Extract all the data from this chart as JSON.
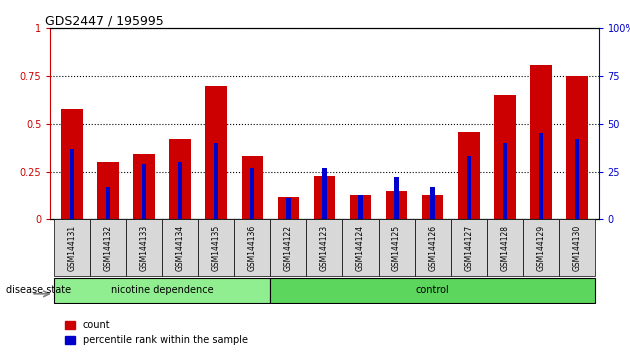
{
  "title": "GDS2447 / 195995",
  "categories": [
    "GSM144131",
    "GSM144132",
    "GSM144133",
    "GSM144134",
    "GSM144135",
    "GSM144136",
    "GSM144122",
    "GSM144123",
    "GSM144124",
    "GSM144125",
    "GSM144126",
    "GSM144127",
    "GSM144128",
    "GSM144129",
    "GSM144130"
  ],
  "count_values": [
    0.58,
    0.3,
    0.34,
    0.42,
    0.7,
    0.33,
    0.12,
    0.23,
    0.13,
    0.15,
    0.13,
    0.46,
    0.65,
    0.81,
    0.75
  ],
  "percentile_values": [
    0.37,
    0.17,
    0.29,
    0.3,
    0.4,
    0.27,
    0.11,
    0.27,
    0.13,
    0.22,
    0.17,
    0.33,
    0.4,
    0.45,
    0.42
  ],
  "group1_label": "nicotine dependence",
  "group2_label": "control",
  "group1_count": 6,
  "group2_count": 9,
  "group1_color": "#90EE90",
  "group2_color": "#5CD65C",
  "bar_color": "#CC0000",
  "percentile_color": "#0000CC",
  "ylim": [
    0,
    1.0
  ],
  "yticks": [
    0,
    0.25,
    0.5,
    0.75,
    1.0
  ],
  "ytick_labels_left": [
    "0",
    "0.25",
    "0.5",
    "0.75",
    "1"
  ],
  "ytick_labels_right": [
    "0",
    "25",
    "50",
    "75",
    "100%"
  ],
  "legend_count": "count",
  "legend_percentile": "percentile rank within the sample",
  "disease_state_label": "disease state",
  "bar_width": 0.6,
  "blue_bar_width": 0.12
}
